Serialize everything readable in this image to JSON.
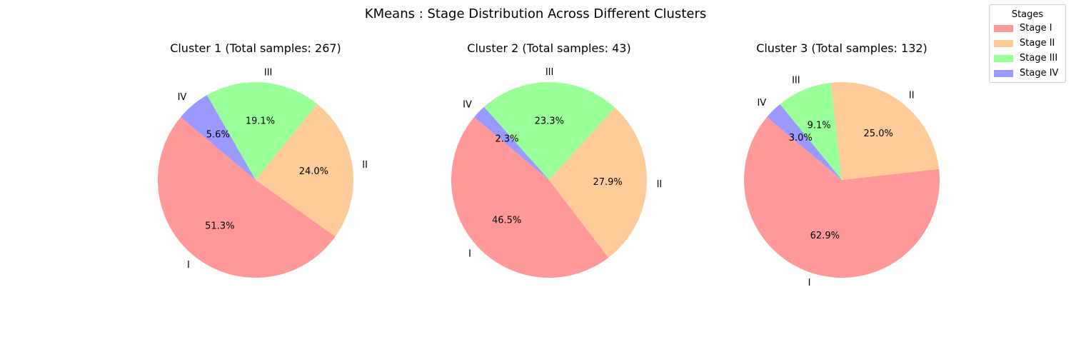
{
  "title": "KMeans : Stage Distribution Across Different Clusters",
  "legend": {
    "title": "Stages",
    "placement": "upper-right",
    "items": [
      {
        "label": "Stage I",
        "color": "#ff9999"
      },
      {
        "label": "Stage II",
        "color": "#ffcc99"
      },
      {
        "label": "Stage III",
        "color": "#99ff99"
      },
      {
        "label": "Stage IV",
        "color": "#9999ff"
      }
    ]
  },
  "chart_data": [
    {
      "type": "pie",
      "title": "Cluster 1 (Total samples: 267)",
      "labels": [
        "I",
        "II",
        "III",
        "IV"
      ],
      "values": [
        51.3,
        24.0,
        19.1,
        5.6
      ],
      "pct_labels": [
        "51.3%",
        "24.0%",
        "19.1%",
        "5.6%"
      ],
      "colors": [
        "#ff9999",
        "#ffcc99",
        "#99ff99",
        "#9999ff"
      ],
      "start_angle": 140,
      "direction": "counterclockwise"
    },
    {
      "type": "pie",
      "title": "Cluster 2 (Total samples: 43)",
      "labels": [
        "I",
        "II",
        "III",
        "IV"
      ],
      "values": [
        46.5,
        27.9,
        23.3,
        2.3
      ],
      "pct_labels": [
        "46.5%",
        "27.9%",
        "23.3%",
        "2.3%"
      ],
      "colors": [
        "#ff9999",
        "#ffcc99",
        "#99ff99",
        "#9999ff"
      ],
      "start_angle": 140,
      "direction": "counterclockwise"
    },
    {
      "type": "pie",
      "title": "Cluster 3 (Total samples: 132)",
      "labels": [
        "I",
        "II",
        "III",
        "IV"
      ],
      "values": [
        62.9,
        25.0,
        9.1,
        3.0
      ],
      "pct_labels": [
        "62.9%",
        "25.0%",
        "9.1%",
        "3.0%"
      ],
      "colors": [
        "#ff9999",
        "#ffcc99",
        "#99ff99",
        "#9999ff"
      ],
      "start_angle": 140,
      "direction": "counterclockwise"
    }
  ]
}
